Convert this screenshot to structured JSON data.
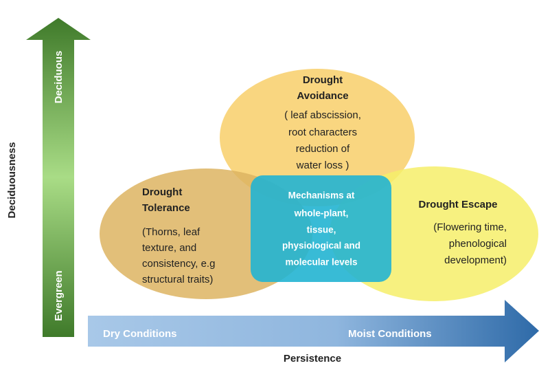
{
  "vertical_axis": {
    "title": "Deciduousness",
    "top_label": "Deciduous",
    "bottom_label": "Evergreen"
  },
  "horizontal_axis": {
    "title": "Persistence",
    "left_label": "Dry Conditions",
    "right_label": "Moist Conditions"
  },
  "nodes": [
    {
      "title": [
        "Drought",
        "Avoidance"
      ],
      "body": [
        "( leaf abscission,",
        "root characters",
        "reduction of",
        "water loss )"
      ]
    },
    {
      "title": [
        "Drought",
        "Tolerance"
      ],
      "body": [
        "(Thorns, leaf",
        "texture, and",
        "consistency, e.g",
        "structural traits)"
      ]
    },
    {
      "title": [
        "Drought Escape"
      ],
      "body": [
        "(Flowering time,",
        "phenological",
        "development)"
      ]
    }
  ],
  "center": {
    "lines": [
      "Mechanisms at",
      "whole-plant,",
      "tissue,",
      "physiological and",
      "molecular levels"
    ]
  }
}
